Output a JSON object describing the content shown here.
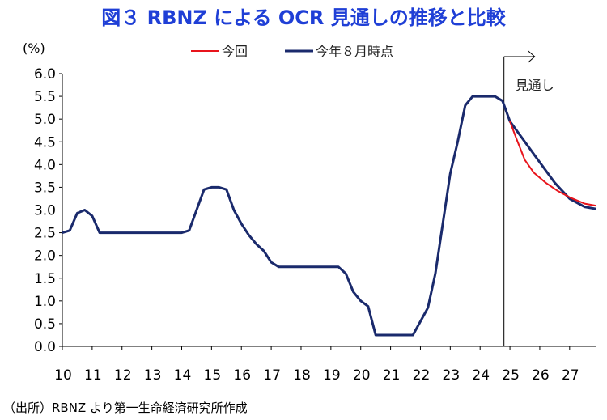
{
  "chart_data": {
    "type": "line",
    "title": "図３ RBNZ による OCR 見通しの推移と比較",
    "ylabel": "(%)",
    "xlabel": "",
    "ylim": [
      0.0,
      6.0
    ],
    "xlim": [
      10,
      27.9
    ],
    "y_ticks": [
      "0.0",
      "0.5",
      "1.0",
      "1.5",
      "2.0",
      "2.5",
      "3.0",
      "3.5",
      "4.0",
      "4.5",
      "5.0",
      "5.5",
      "6.0"
    ],
    "x_ticks": [
      "10",
      "11",
      "12",
      "13",
      "14",
      "15",
      "16",
      "17",
      "18",
      "19",
      "20",
      "21",
      "22",
      "23",
      "24",
      "25",
      "26",
      "27"
    ],
    "grid": false,
    "legend_position": "top-center",
    "annotation": {
      "label": "見通し",
      "x": 24.8
    },
    "series": [
      {
        "name": "今年８月時点",
        "color": "#1a2a6c",
        "points": [
          [
            10.0,
            2.5
          ],
          [
            10.25,
            2.55
          ],
          [
            10.5,
            2.93
          ],
          [
            10.75,
            3.0
          ],
          [
            11.0,
            2.87
          ],
          [
            11.25,
            2.5
          ],
          [
            14.0,
            2.5
          ],
          [
            14.25,
            2.55
          ],
          [
            14.5,
            3.0
          ],
          [
            14.75,
            3.45
          ],
          [
            15.0,
            3.5
          ],
          [
            15.25,
            3.5
          ],
          [
            15.5,
            3.45
          ],
          [
            15.75,
            3.0
          ],
          [
            16.0,
            2.7
          ],
          [
            16.25,
            2.45
          ],
          [
            16.5,
            2.25
          ],
          [
            16.75,
            2.1
          ],
          [
            17.0,
            1.85
          ],
          [
            17.25,
            1.75
          ],
          [
            19.25,
            1.75
          ],
          [
            19.5,
            1.6
          ],
          [
            19.75,
            1.2
          ],
          [
            20.0,
            1.0
          ],
          [
            20.25,
            0.88
          ],
          [
            20.5,
            0.25
          ],
          [
            21.75,
            0.25
          ],
          [
            22.0,
            0.55
          ],
          [
            22.25,
            0.85
          ],
          [
            22.5,
            1.6
          ],
          [
            22.75,
            2.7
          ],
          [
            23.0,
            3.8
          ],
          [
            23.25,
            4.5
          ],
          [
            23.5,
            5.3
          ],
          [
            23.75,
            5.5
          ],
          [
            24.5,
            5.5
          ],
          [
            24.75,
            5.4
          ],
          [
            25.0,
            4.95
          ],
          [
            25.5,
            4.5
          ],
          [
            26.0,
            4.05
          ],
          [
            26.5,
            3.6
          ],
          [
            27.0,
            3.25
          ],
          [
            27.5,
            3.07
          ],
          [
            28.0,
            3.01
          ],
          [
            28.25,
            3.0
          ]
        ]
      },
      {
        "name": "今回",
        "color": "#e8141c",
        "points": [
          [
            25.0,
            4.95
          ],
          [
            25.2,
            4.6
          ],
          [
            25.5,
            4.1
          ],
          [
            25.8,
            3.82
          ],
          [
            26.2,
            3.6
          ],
          [
            26.6,
            3.42
          ],
          [
            27.0,
            3.28
          ],
          [
            27.5,
            3.14
          ],
          [
            28.0,
            3.08
          ],
          [
            28.5,
            3.07
          ]
        ]
      }
    ]
  },
  "source": "（出所）RBNZ より第一生命経済研究所作成"
}
